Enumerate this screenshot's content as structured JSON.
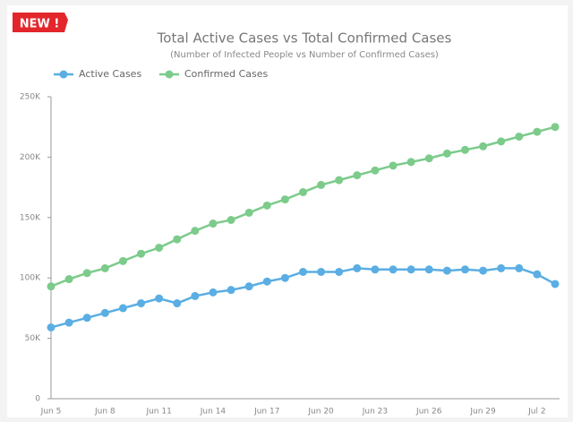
{
  "chart_data": {
    "type": "line",
    "badge": "NEW !",
    "title": "Total Active Cases vs Total Confirmed Cases",
    "subtitle": "(Number of Infected People vs Number of Confirmed Cases)",
    "categories": [
      "Jun 5",
      null,
      null,
      "Jun 8",
      null,
      null,
      "Jun 11",
      null,
      null,
      "Jun 14",
      null,
      null,
      "Jun 17",
      null,
      null,
      "Jun 20",
      null,
      null,
      "Jun 23",
      null,
      null,
      "Jun 26",
      null,
      null,
      "Jun 29",
      null,
      null,
      "Jul 2",
      null
    ],
    "series": [
      {
        "name": "Active Cases",
        "color": "#5aaee3",
        "values": [
          59000,
          63000,
          67000,
          71000,
          75000,
          79000,
          83000,
          79000,
          85000,
          88000,
          90000,
          93000,
          97000,
          100000,
          105000,
          105000,
          105000,
          108000,
          107000,
          107000,
          107000,
          107000,
          106000,
          107000,
          106000,
          108000,
          108000,
          103000,
          95000
        ]
      },
      {
        "name": "Confirmed Cases",
        "color": "#7ccb8b",
        "values": [
          93000,
          99000,
          104000,
          108000,
          114000,
          120000,
          125000,
          132000,
          139000,
          145000,
          148000,
          154000,
          160000,
          165000,
          171000,
          177000,
          181000,
          185000,
          189000,
          193000,
          196000,
          199000,
          203000,
          206000,
          209000,
          213000,
          217000,
          221000,
          225000
        ]
      }
    ],
    "ylim": [
      0,
      250000
    ],
    "yticks": [
      0,
      {
        "value": 50000,
        "label": "50K"
      },
      {
        "value": 100000,
        "label": "100K"
      },
      {
        "value": 150000,
        "label": "150K"
      },
      {
        "value": 200000,
        "label": "200K"
      },
      {
        "value": 250000,
        "label": "250K"
      }
    ],
    "grid": false,
    "legend": "top-left"
  }
}
